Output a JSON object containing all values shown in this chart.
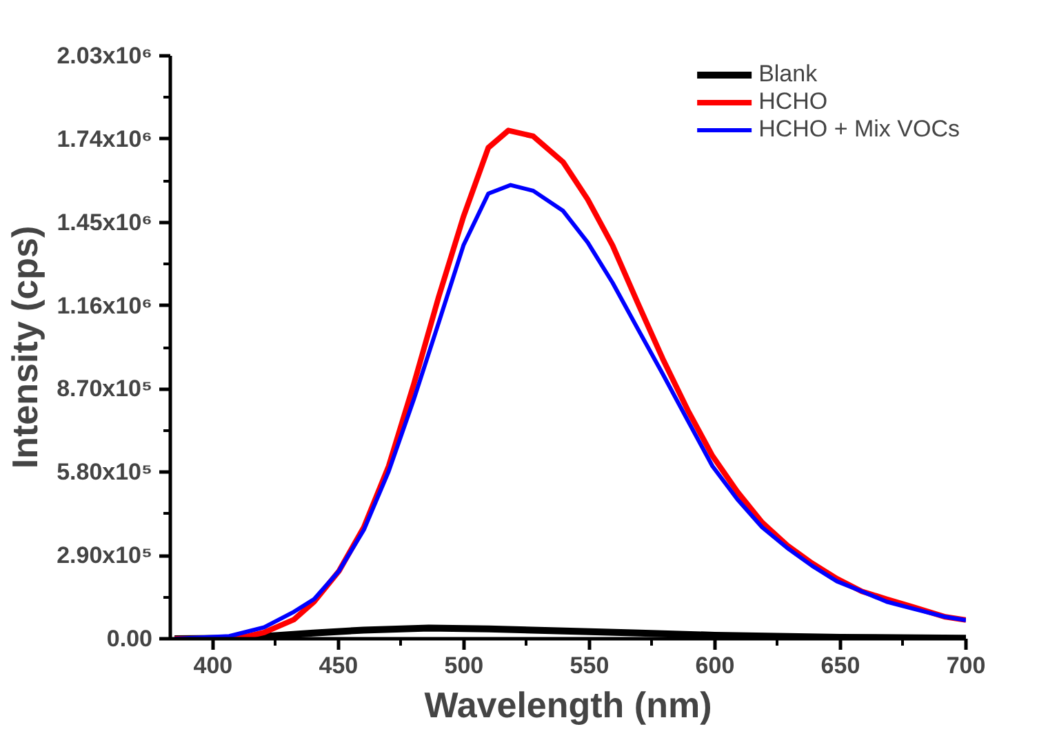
{
  "chart_data": {
    "type": "line",
    "xlabel": "Wavelength (nm)",
    "ylabel": "Intensity (cps)",
    "xlim": [
      383,
      700
    ],
    "ylim": [
      0,
      2030000
    ],
    "xticks": [
      400,
      450,
      500,
      550,
      600,
      650,
      700
    ],
    "yticks": [
      {
        "value": 0,
        "label": "0.00"
      },
      {
        "value": 290000,
        "label": "2.90x10⁵"
      },
      {
        "value": 580000,
        "label": "5.80x10⁵"
      },
      {
        "value": 870000,
        "label": "8.70x10⁵"
      },
      {
        "value": 1160000,
        "label": "1.16x10⁶"
      },
      {
        "value": 1450000,
        "label": "1.45x10⁶"
      },
      {
        "value": 1740000,
        "label": "1.74x10⁶"
      },
      {
        "value": 2030000,
        "label": "2.03x10⁶"
      }
    ],
    "grid": false,
    "legend": "top right",
    "marker": "none",
    "line_style": "solid",
    "series": [
      {
        "name": "Blank",
        "color": "#000000",
        "x": [
          384.7,
          410,
          420,
          440,
          460,
          486,
          510,
          540,
          570,
          600,
          650,
          700
        ],
        "values": [
          0,
          2000,
          8000,
          20000,
          30000,
          37000,
          34000,
          27000,
          20000,
          12000,
          5000,
          2000
        ]
      },
      {
        "name": "HCHO",
        "color": "#ff0000",
        "x": [
          384.7,
          410.5,
          420.4,
          432.3,
          440.3,
          450.2,
          460.1,
          470,
          480,
          489.9,
          499.8,
          509.7,
          517.7,
          527.6,
          539.5,
          549.3,
          559.2,
          569.2,
          579.2,
          589.1,
          599,
          608.9,
          618.8,
          628.8,
          638.7,
          648.6,
          658.5,
          668.4,
          678.4,
          691.8,
          700
        ],
        "values": [
          0,
          2000,
          22000,
          67000,
          129000,
          236000,
          388000,
          601000,
          886000,
          1190000,
          1470000,
          1710000,
          1770000,
          1750000,
          1660000,
          1530000,
          1370000,
          1170000,
          975000,
          797000,
          637000,
          512000,
          405000,
          325000,
          263000,
          209000,
          165000,
          138000,
          112000,
          76000,
          65000
        ]
      },
      {
        "name": "HCHO + Mix VOCs",
        "color": "#0000ff",
        "x": [
          384.7,
          406.5,
          420.4,
          432.3,
          440.3,
          450.2,
          460.1,
          470,
          480,
          489.9,
          499.8,
          509.7,
          518.6,
          527.6,
          539.5,
          549.3,
          559.2,
          569.2,
          579.2,
          589.1,
          599,
          608.9,
          618.8,
          628.8,
          638.7,
          648.6,
          658.5,
          668.4,
          678.4,
          691.8,
          700
        ],
        "values": [
          0,
          9000,
          40000,
          94000,
          138000,
          236000,
          379000,
          583000,
          833000,
          1100000,
          1370000,
          1550000,
          1580000,
          1560000,
          1490000,
          1380000,
          1240000,
          1080000,
          922000,
          761000,
          601000,
          486000,
          388000,
          316000,
          254000,
          200000,
          165000,
          129000,
          106000,
          76000,
          65000
        ]
      }
    ]
  }
}
